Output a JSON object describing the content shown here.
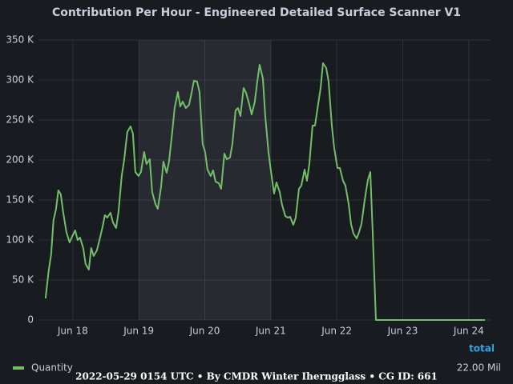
{
  "chart_data": {
    "type": "line",
    "title": "Contribution Per Hour - Engineered Detailed Surface Scanner V1",
    "x": [
      17.587,
      17.635,
      17.672,
      17.708,
      17.745,
      17.781,
      17.818,
      17.854,
      17.903,
      17.951,
      17.988,
      18.036,
      18.073,
      18.109,
      18.158,
      18.194,
      18.243,
      18.279,
      18.316,
      18.365,
      18.413,
      18.45,
      18.486,
      18.523,
      18.571,
      18.608,
      18.656,
      18.693,
      18.741,
      18.778,
      18.826,
      18.875,
      18.911,
      18.948,
      18.996,
      19.033,
      19.081,
      19.118,
      19.166,
      19.203,
      19.252,
      19.288,
      19.337,
      19.373,
      19.422,
      19.458,
      19.507,
      19.543,
      19.592,
      19.628,
      19.665,
      19.713,
      19.762,
      19.798,
      19.835,
      19.883,
      19.92,
      19.968,
      20.005,
      20.041,
      20.09,
      20.126,
      20.163,
      20.211,
      20.248,
      20.297,
      20.333,
      20.382,
      20.418,
      20.467,
      20.503,
      20.54,
      20.588,
      20.625,
      20.673,
      20.71,
      20.758,
      20.795,
      20.831,
      20.88,
      20.916,
      20.965,
      21.001,
      21.05,
      21.086,
      21.135,
      21.171,
      21.22,
      21.256,
      21.293,
      21.341,
      21.378,
      21.427,
      21.463,
      21.512,
      21.548,
      21.584,
      21.633,
      21.67,
      21.718,
      21.755,
      21.791,
      21.84,
      21.876,
      21.925,
      21.961,
      22.01,
      22.046,
      22.095,
      22.131,
      22.18,
      22.216,
      22.253,
      22.301,
      22.338,
      22.374,
      22.423,
      22.471,
      22.508,
      22.544,
      22.593,
      24.246
    ],
    "series": [
      {
        "name": "Quantity",
        "color": "#73bf69",
        "total": "22.00 Mil",
        "values": [
          27000,
          62000,
          82000,
          125000,
          138000,
          162000,
          157000,
          135000,
          110000,
          97000,
          104000,
          112000,
          100000,
          103000,
          90000,
          70000,
          63000,
          90000,
          80000,
          87000,
          103000,
          116000,
          131000,
          128000,
          134000,
          122000,
          115000,
          135000,
          180000,
          200000,
          235000,
          242000,
          233000,
          185000,
          180000,
          185000,
          210000,
          195000,
          201000,
          160000,
          145000,
          139000,
          166000,
          198000,
          184000,
          198000,
          235000,
          265000,
          285000,
          267000,
          273000,
          265000,
          269000,
          283000,
          299000,
          298000,
          285000,
          220000,
          210000,
          188000,
          180000,
          187000,
          173000,
          171000,
          164000,
          208000,
          201000,
          203000,
          220000,
          262000,
          265000,
          255000,
          290000,
          284000,
          270000,
          257000,
          273000,
          298000,
          319000,
          302000,
          255000,
          210000,
          187000,
          158000,
          172000,
          160000,
          144000,
          130000,
          128000,
          129000,
          119000,
          128000,
          164000,
          168000,
          188000,
          174000,
          195000,
          243000,
          243000,
          270000,
          290000,
          321000,
          315000,
          298000,
          243000,
          215000,
          190000,
          190000,
          174000,
          168000,
          145000,
          120000,
          108000,
          102000,
          110000,
          120000,
          150000,
          175000,
          185000,
          110000,
          0,
          0
        ]
      }
    ],
    "legend_header": "total",
    "xlim": [
      17.48,
      24.33
    ],
    "ylim": [
      0,
      350000
    ],
    "xticks": [
      {
        "value": 18,
        "label": "Jun 18"
      },
      {
        "value": 19,
        "label": "Jun 19"
      },
      {
        "value": 20,
        "label": "Jun 20"
      },
      {
        "value": 21,
        "label": "Jun 21"
      },
      {
        "value": 22,
        "label": "Jun 22"
      },
      {
        "value": 23,
        "label": "Jun 23"
      },
      {
        "value": 24,
        "label": "Jun 24"
      }
    ],
    "yticks": [
      0,
      {
        "value": 50000,
        "label": "50 K"
      },
      {
        "value": 100000,
        "label": "100 K"
      },
      {
        "value": 150000,
        "label": "150 K"
      },
      {
        "value": 200000,
        "label": "200 K"
      },
      {
        "value": 250000,
        "label": "250 K"
      },
      {
        "value": 300000,
        "label": "300 K"
      },
      {
        "value": 350000,
        "label": "350 K"
      }
    ],
    "shaded_region": [
      19,
      21
    ],
    "grid": true,
    "footer": "2022-05-29 0154 UTC • By CMDR Winter Iherngglass • CG ID: 661"
  }
}
